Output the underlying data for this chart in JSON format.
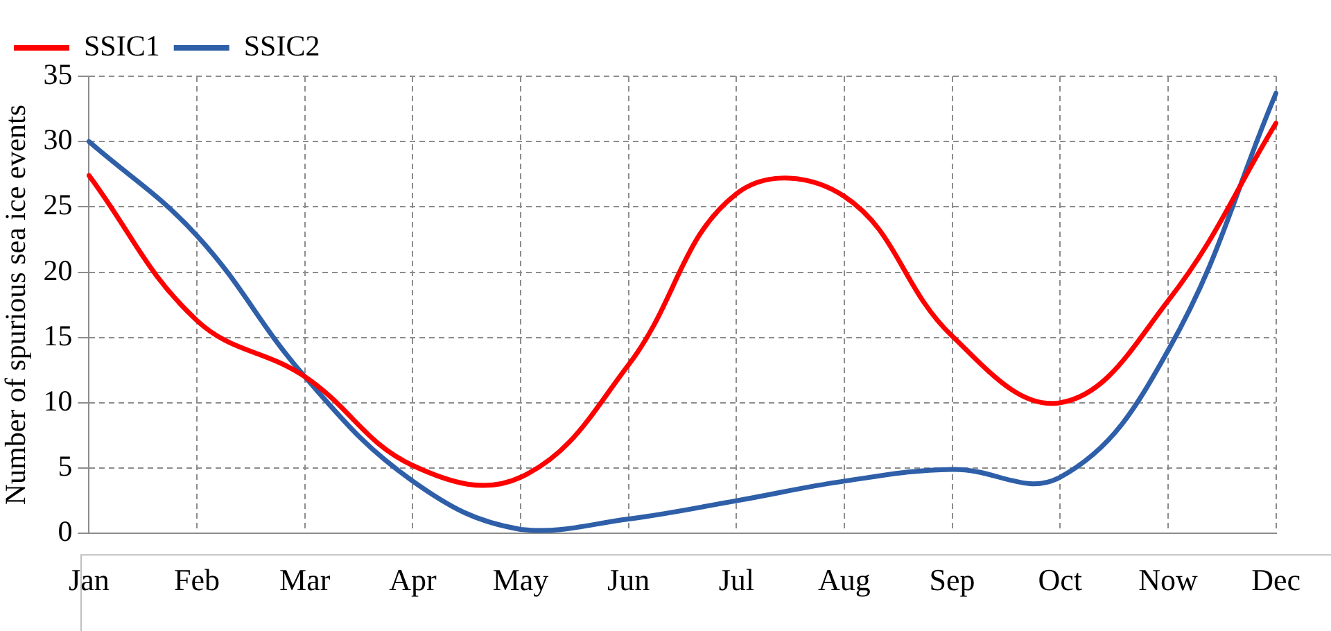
{
  "chart_data": {
    "type": "line",
    "ylabel": "Number of spurious sea ice events",
    "categories": [
      "Jan",
      "Feb",
      "Mar",
      "Apr",
      "May",
      "Jun",
      "Jul",
      "Aug",
      "Sep",
      "Oct",
      "Now",
      "Dec"
    ],
    "series": [
      {
        "name": "SSIC1",
        "color": "#ff0000",
        "values": [
          27.4,
          16.3,
          12.0,
          5.2,
          4.3,
          12.9,
          26.0,
          25.8,
          15.1,
          10.0,
          17.8,
          31.4
        ]
      },
      {
        "name": "SSIC2",
        "color": "#2e5fa8",
        "values": [
          30.0,
          22.8,
          12.0,
          4.0,
          0.3,
          1.1,
          2.5,
          4.0,
          4.9,
          4.3,
          14.0,
          33.7
        ]
      }
    ],
    "ylim": [
      0,
      35
    ],
    "yticks": [
      0,
      5,
      10,
      15,
      20,
      25,
      30,
      35
    ],
    "grid": true,
    "legend": "top left",
    "marker": "none",
    "line_style": "solid"
  }
}
